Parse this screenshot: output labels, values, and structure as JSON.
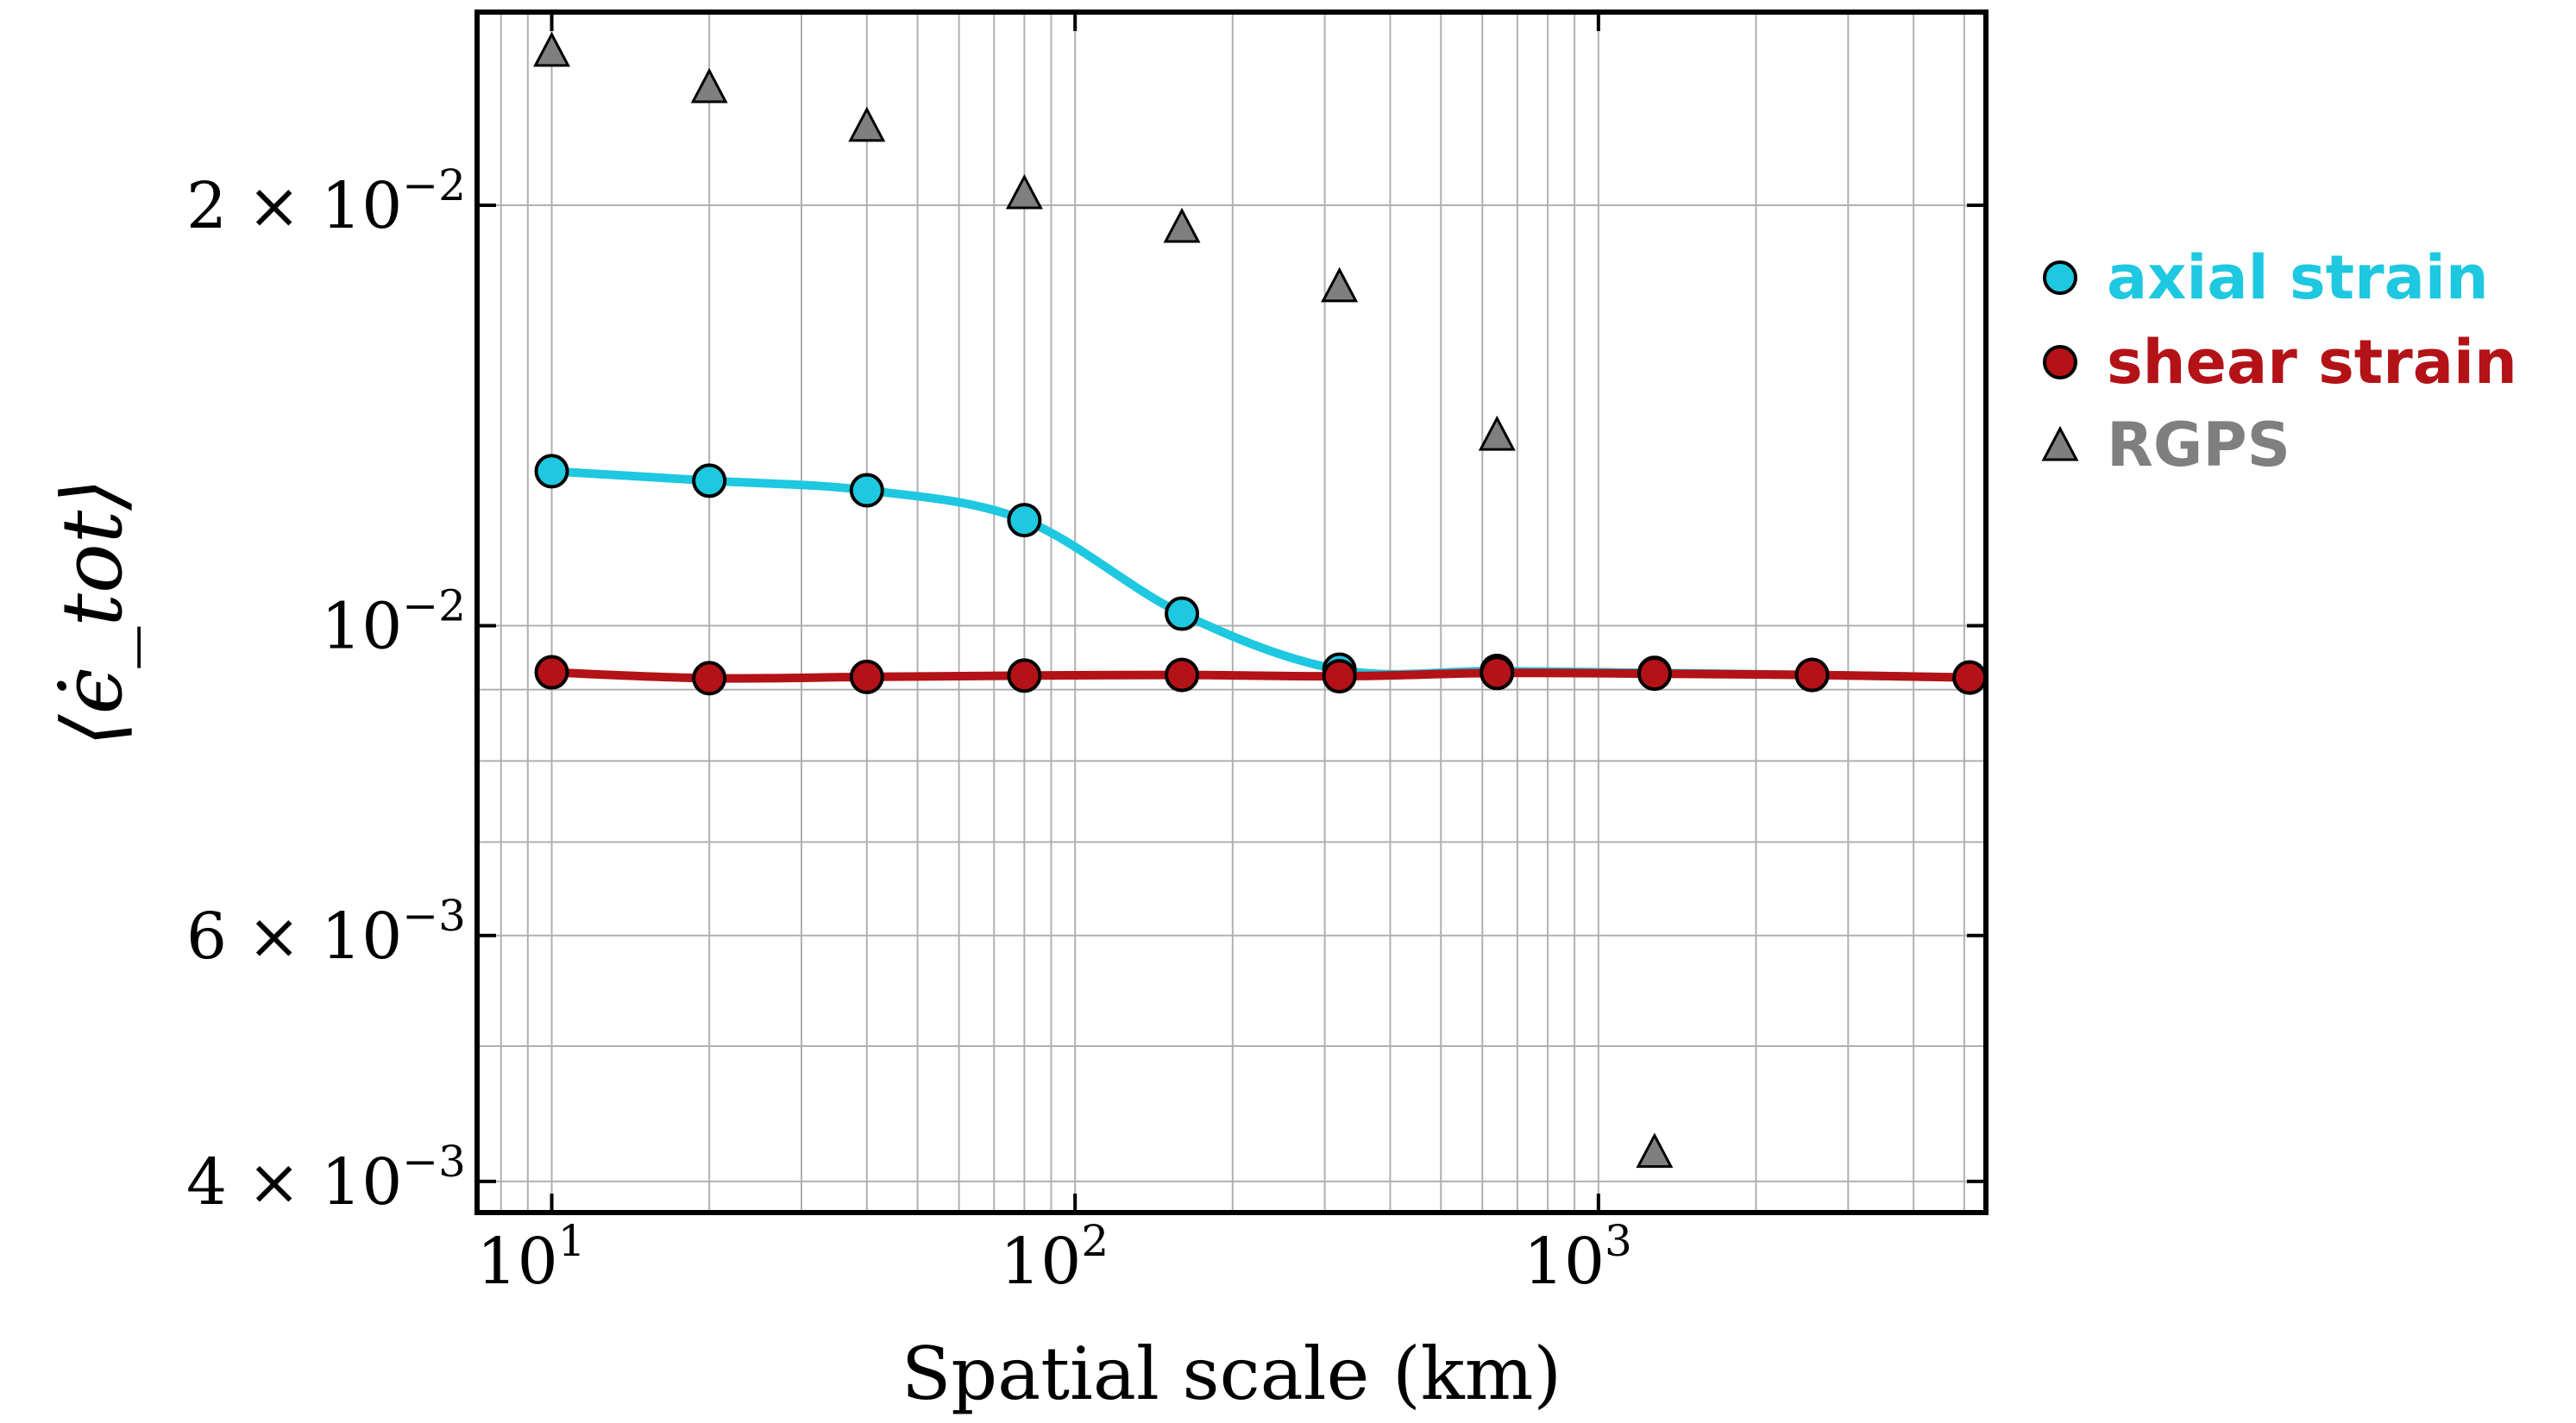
{
  "chart_data": {
    "type": "line",
    "title": "",
    "xlabel": "Spatial scale (km)",
    "ylabel": "⟨ϵ̇_tot⟩",
    "xscale": "log",
    "yscale": "log",
    "xlim": [
      7.2,
      5500
    ],
    "ylim": [
      0.0038,
      0.0275
    ],
    "grid": true,
    "legend_placement": "outside-right",
    "x_tick_labels": [
      {
        "base": "10",
        "exp": "1",
        "value": 10
      },
      {
        "base": "10",
        "exp": "2",
        "value": 100
      },
      {
        "base": "10",
        "exp": "3",
        "value": 1000
      }
    ],
    "y_tick_labels": [
      {
        "mant": "2 × 10",
        "exp": "−2",
        "value": 0.02
      },
      {
        "mant": "10",
        "exp": "−2",
        "value": 0.01
      },
      {
        "mant": "6 × 10",
        "exp": "−3",
        "value": 0.006
      },
      {
        "mant": "4 × 10",
        "exp": "−3",
        "value": 0.004
      }
    ],
    "series": [
      {
        "name": "axial strain",
        "color": "#1ec8e0",
        "marker": "circle",
        "line": true,
        "x": [
          10,
          20,
          40,
          80,
          160,
          320,
          640,
          1280,
          2560,
          5120
        ],
        "y": [
          0.0129,
          0.0127,
          0.0125,
          0.0119,
          0.0102,
          0.0093,
          0.00928,
          0.00925,
          0.00922,
          0.00918
        ]
      },
      {
        "name": "shear strain",
        "color": "#b31217",
        "marker": "circle",
        "line": true,
        "x": [
          10,
          20,
          40,
          80,
          160,
          320,
          640,
          1280,
          2560,
          5120
        ],
        "y": [
          0.00926,
          0.00917,
          0.00919,
          0.00921,
          0.00922,
          0.0092,
          0.00925,
          0.00924,
          0.00922,
          0.00918
        ]
      },
      {
        "name": "RGPS",
        "color": "#7f7f7f",
        "marker": "triangle",
        "line": false,
        "x": [
          10,
          20,
          40,
          80,
          160,
          320,
          640,
          1280
        ],
        "y": [
          0.0258,
          0.0243,
          0.0228,
          0.0204,
          0.0193,
          0.0175,
          0.0137,
          0.0042
        ]
      }
    ]
  }
}
